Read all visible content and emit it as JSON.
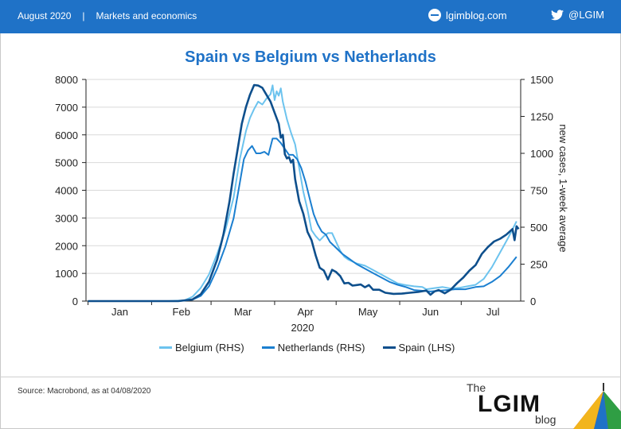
{
  "header": {
    "date": "August 2020",
    "separator": "|",
    "section": "Markets and economics",
    "site": "lgimblog.com",
    "twitter": "@LGIM"
  },
  "footer": {
    "source": "Source: Macrobond, as at 04/08/2020",
    "logo_the": "The",
    "logo_brand": "LGIM",
    "logo_blog": "blog"
  },
  "colors": {
    "header_bg": "#1f72c7",
    "title": "#1f72c7",
    "belgium": "#6cc3ee",
    "netherlands": "#1b7fd0",
    "spain": "#0e4f8c"
  },
  "chart_data": {
    "type": "line",
    "title": "Spain vs Belgium vs Netherlands",
    "xlabel": "2020",
    "ylabel_left": "",
    "ylabel_right": "new cases, 1-week average",
    "x_ticks": [
      "Jan",
      "Feb",
      "Mar",
      "Apr",
      "May",
      "Jun",
      "Jul"
    ],
    "left_axis": {
      "min": 0,
      "max": 8000,
      "ticks": [
        "0",
        "1000",
        "2000",
        "3000",
        "4000",
        "5000",
        "6000",
        "7000",
        "8000"
      ]
    },
    "right_axis": {
      "min": 0,
      "max": 1500,
      "ticks": [
        "0",
        "250",
        "500",
        "750",
        "1000",
        "1250",
        "1500"
      ]
    },
    "grid": "horizontal",
    "legend_position": "bottom",
    "series": [
      {
        "name": "Belgium (RHS)",
        "axis": "right",
        "points": [
          [
            1,
            0
          ],
          [
            30,
            0
          ],
          [
            40,
            0
          ],
          [
            48,
            5
          ],
          [
            52,
            30
          ],
          [
            56,
            90
          ],
          [
            60,
            180
          ],
          [
            64,
            320
          ],
          [
            68,
            480
          ],
          [
            72,
            700
          ],
          [
            75,
            960
          ],
          [
            78,
            1150
          ],
          [
            80,
            1240
          ],
          [
            82,
            1300
          ],
          [
            84,
            1350
          ],
          [
            86,
            1330
          ],
          [
            88,
            1370
          ],
          [
            90,
            1400
          ],
          [
            91,
            1460
          ],
          [
            92,
            1360
          ],
          [
            93,
            1420
          ],
          [
            94,
            1390
          ],
          [
            95,
            1440
          ],
          [
            96,
            1350
          ],
          [
            98,
            1230
          ],
          [
            100,
            1140
          ],
          [
            102,
            1060
          ],
          [
            104,
            900
          ],
          [
            106,
            740
          ],
          [
            108,
            620
          ],
          [
            110,
            480
          ],
          [
            112,
            440
          ],
          [
            114,
            410
          ],
          [
            116,
            440
          ],
          [
            118,
            460
          ],
          [
            120,
            460
          ],
          [
            122,
            400
          ],
          [
            124,
            340
          ],
          [
            126,
            300
          ],
          [
            128,
            280
          ],
          [
            132,
            255
          ],
          [
            136,
            240
          ],
          [
            140,
            210
          ],
          [
            144,
            180
          ],
          [
            148,
            150
          ],
          [
            152,
            120
          ],
          [
            156,
            108
          ],
          [
            160,
            100
          ],
          [
            164,
            95
          ],
          [
            166,
            80
          ],
          [
            170,
            88
          ],
          [
            174,
            95
          ],
          [
            178,
            85
          ],
          [
            182,
            90
          ],
          [
            186,
            100
          ],
          [
            190,
            110
          ],
          [
            194,
            150
          ],
          [
            198,
            230
          ],
          [
            202,
            330
          ],
          [
            206,
            430
          ],
          [
            210,
            540
          ]
        ]
      },
      {
        "name": "Netherlands (RHS)",
        "axis": "right",
        "points": [
          [
            1,
            0
          ],
          [
            30,
            0
          ],
          [
            45,
            0
          ],
          [
            52,
            10
          ],
          [
            56,
            35
          ],
          [
            60,
            100
          ],
          [
            64,
            220
          ],
          [
            68,
            370
          ],
          [
            72,
            560
          ],
          [
            75,
            800
          ],
          [
            77,
            960
          ],
          [
            79,
            1020
          ],
          [
            81,
            1050
          ],
          [
            83,
            1000
          ],
          [
            85,
            1000
          ],
          [
            87,
            1010
          ],
          [
            89,
            990
          ],
          [
            91,
            1100
          ],
          [
            93,
            1100
          ],
          [
            95,
            1070
          ],
          [
            97,
            1030
          ],
          [
            99,
            990
          ],
          [
            101,
            990
          ],
          [
            103,
            960
          ],
          [
            105,
            900
          ],
          [
            107,
            810
          ],
          [
            109,
            700
          ],
          [
            111,
            590
          ],
          [
            113,
            520
          ],
          [
            115,
            470
          ],
          [
            117,
            450
          ],
          [
            119,
            400
          ],
          [
            122,
            360
          ],
          [
            125,
            320
          ],
          [
            128,
            290
          ],
          [
            132,
            250
          ],
          [
            136,
            220
          ],
          [
            140,
            190
          ],
          [
            144,
            160
          ],
          [
            148,
            130
          ],
          [
            152,
            110
          ],
          [
            156,
            95
          ],
          [
            160,
            75
          ],
          [
            164,
            70
          ],
          [
            168,
            65
          ],
          [
            172,
            70
          ],
          [
            176,
            75
          ],
          [
            180,
            80
          ],
          [
            185,
            80
          ],
          [
            190,
            95
          ],
          [
            194,
            100
          ],
          [
            198,
            130
          ],
          [
            202,
            170
          ],
          [
            206,
            230
          ],
          [
            210,
            300
          ]
        ]
      },
      {
        "name": "Spain (LHS)",
        "axis": "left",
        "points": [
          [
            1,
            0
          ],
          [
            30,
            0
          ],
          [
            45,
            0
          ],
          [
            52,
            60
          ],
          [
            56,
            250
          ],
          [
            60,
            700
          ],
          [
            64,
            1500
          ],
          [
            67,
            2400
          ],
          [
            70,
            3600
          ],
          [
            72,
            4600
          ],
          [
            74,
            5500
          ],
          [
            76,
            6400
          ],
          [
            78,
            7000
          ],
          [
            80,
            7450
          ],
          [
            82,
            7800
          ],
          [
            84,
            7780
          ],
          [
            86,
            7700
          ],
          [
            88,
            7450
          ],
          [
            90,
            7200
          ],
          [
            92,
            6800
          ],
          [
            94,
            6400
          ],
          [
            95,
            5900
          ],
          [
            96,
            6000
          ],
          [
            97,
            5300
          ],
          [
            98,
            5150
          ],
          [
            99,
            5200
          ],
          [
            100,
            5000
          ],
          [
            101,
            5100
          ],
          [
            102,
            4400
          ],
          [
            104,
            3600
          ],
          [
            106,
            3150
          ],
          [
            108,
            2500
          ],
          [
            110,
            2200
          ],
          [
            112,
            1650
          ],
          [
            114,
            1200
          ],
          [
            116,
            1100
          ],
          [
            118,
            780
          ],
          [
            120,
            1130
          ],
          [
            122,
            1050
          ],
          [
            124,
            900
          ],
          [
            126,
            640
          ],
          [
            128,
            660
          ],
          [
            130,
            560
          ],
          [
            132,
            580
          ],
          [
            134,
            600
          ],
          [
            136,
            500
          ],
          [
            138,
            580
          ],
          [
            140,
            410
          ],
          [
            143,
            410
          ],
          [
            146,
            300
          ],
          [
            150,
            260
          ],
          [
            154,
            270
          ],
          [
            158,
            300
          ],
          [
            162,
            330
          ],
          [
            166,
            380
          ],
          [
            168,
            230
          ],
          [
            170,
            350
          ],
          [
            172,
            400
          ],
          [
            175,
            280
          ],
          [
            178,
            420
          ],
          [
            181,
            650
          ],
          [
            184,
            850
          ],
          [
            187,
            1100
          ],
          [
            190,
            1300
          ],
          [
            193,
            1700
          ],
          [
            196,
            1950
          ],
          [
            199,
            2150
          ],
          [
            202,
            2250
          ],
          [
            205,
            2400
          ],
          [
            208,
            2600
          ],
          [
            209,
            2200
          ],
          [
            210,
            2700
          ],
          [
            211,
            2600
          ]
        ]
      }
    ]
  }
}
